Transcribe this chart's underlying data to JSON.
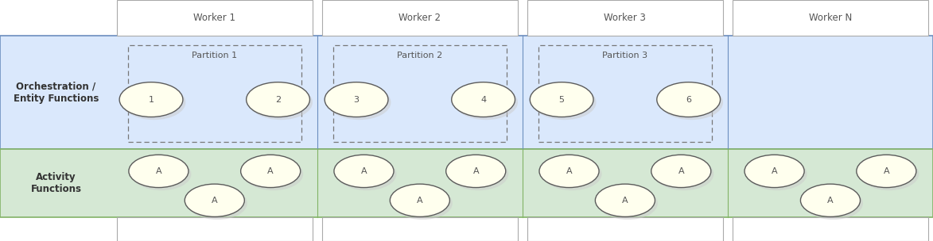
{
  "fig_width": 11.73,
  "fig_height": 3.04,
  "dpi": 100,
  "workers": [
    "Worker 1",
    "Worker 2",
    "Worker 3",
    "Worker N"
  ],
  "orch_band_color": "#DAE8FC",
  "orch_band_edge": "#6C8EBF",
  "orch_label": "Orchestration /\nEntity Functions",
  "act_band_color": "#D5E8D4",
  "act_band_edge": "#82B366",
  "act_label": "Activity\nFunctions",
  "circle_color": "#FFFFEE",
  "circle_edge": "#5B5B5B",
  "worker_box_color": "#FFFFFF",
  "worker_box_edge": "#AAAAAA",
  "label_fontsize": 8.5,
  "partition_fontsize": 8,
  "circle_fontsize": 8,
  "partitions": [
    {
      "label": "Partition 1",
      "circles": [
        "1",
        "2"
      ],
      "col": 0
    },
    {
      "label": "Partition 2",
      "circles": [
        "3",
        "4"
      ],
      "col": 1
    },
    {
      "label": "Partition 3",
      "circles": [
        "5",
        "6"
      ],
      "col": 2
    }
  ]
}
